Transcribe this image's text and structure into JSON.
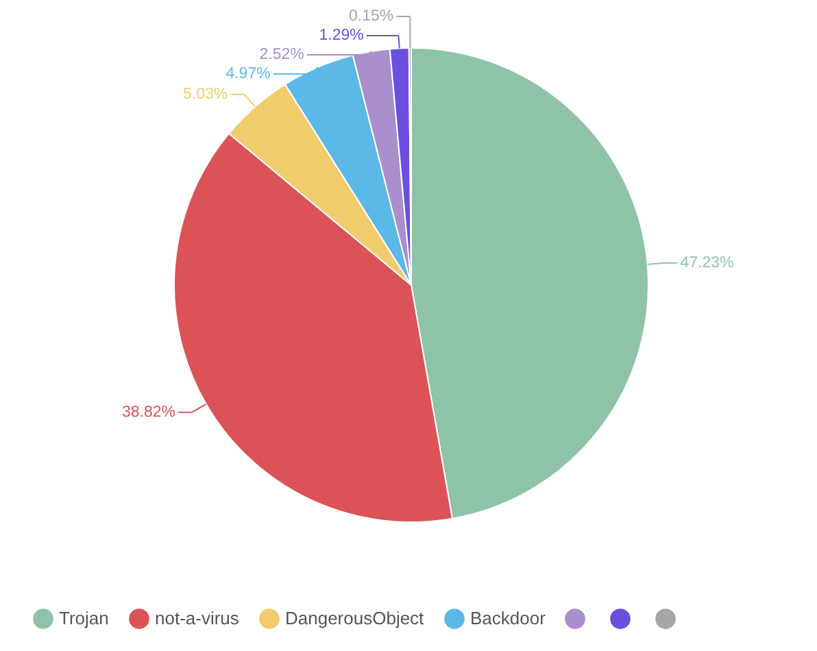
{
  "chart_data": {
    "type": "pie",
    "categories": [
      "Trojan",
      "not-a-virus",
      "DangerousObject",
      "Backdoor",
      null,
      null,
      null
    ],
    "values": [
      47.23,
      38.82,
      5.03,
      4.97,
      2.52,
      1.29,
      0.15
    ],
    "colors": [
      "#8fc3a7",
      "#db5356",
      "#f0cc6c",
      "#5cb8e6",
      "#a98fcb",
      "#6a4fdf",
      "#a6a6a6"
    ],
    "value_labels": [
      "47.23%",
      "38.82%",
      "5.03%",
      "4.97%",
      "2.52%",
      "1.29%",
      "0.15%"
    ],
    "legend": "bottom"
  }
}
